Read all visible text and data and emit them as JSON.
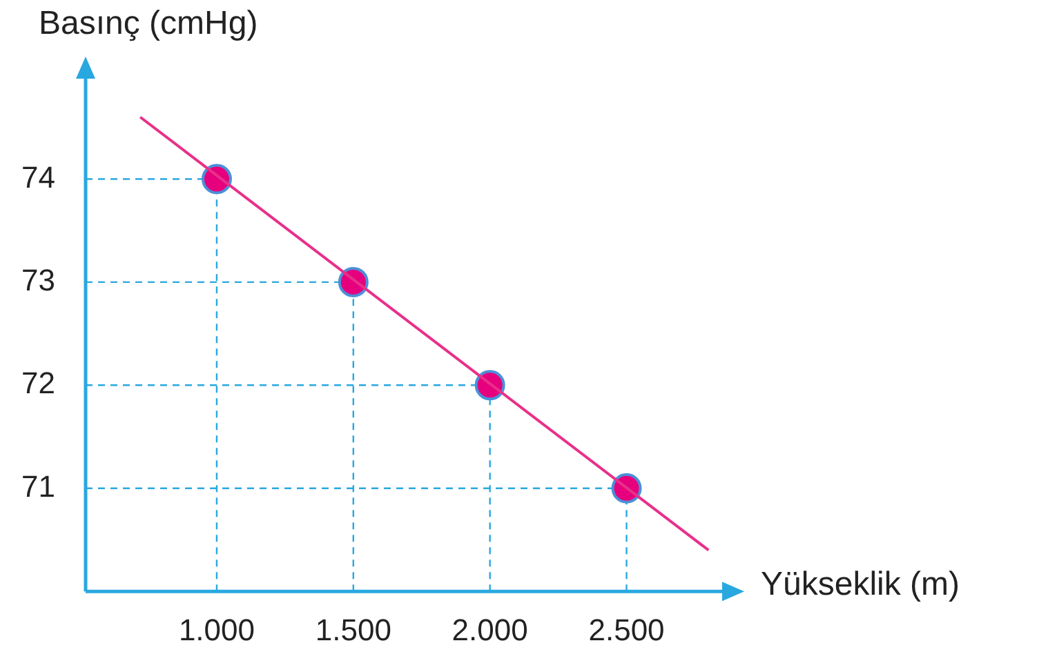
{
  "chart_data": {
    "type": "scatter",
    "xlabel": "Yükseklik (m)",
    "ylabel": "Basınç (cmHg)",
    "xlim": [
      520,
      2860
    ],
    "ylim": [
      70,
      75
    ],
    "xticks": [
      {
        "value": 1000,
        "label": "1.000"
      },
      {
        "value": 1500,
        "label": "1.500"
      },
      {
        "value": 2000,
        "label": "2.000"
      },
      {
        "value": 2500,
        "label": "2.500"
      }
    ],
    "yticks": [
      71,
      72,
      73,
      74
    ],
    "legend": false,
    "ref_lines": [
      {
        "axis": "y",
        "value": 74,
        "color": "#29a8e0",
        "line_style": "dashed"
      },
      {
        "axis": "y",
        "value": 73,
        "color": "#29a8e0",
        "line_style": "dashed"
      },
      {
        "axis": "y",
        "value": 72,
        "color": "#29a8e0",
        "line_style": "dashed"
      },
      {
        "axis": "y",
        "value": 71,
        "color": "#29a8e0",
        "line_style": "dashed"
      },
      {
        "axis": "x",
        "value": 1000,
        "color": "#29a8e0",
        "line_style": "dashed"
      },
      {
        "axis": "x",
        "value": 1500,
        "color": "#29a8e0",
        "line_style": "dashed"
      },
      {
        "axis": "x",
        "value": 2000,
        "color": "#29a8e0",
        "line_style": "dashed"
      },
      {
        "axis": "x",
        "value": 2500,
        "color": "#29a8e0",
        "line_style": "dashed"
      }
    ],
    "series": [
      {
        "type": "line",
        "color": "#e8308a",
        "marker": "none",
        "x": [
          720,
          2800
        ],
        "values": [
          74.6,
          70.4
        ]
      },
      {
        "color": "#e6007e",
        "marker": "circle",
        "x": [
          1000,
          1500,
          2000,
          2500
        ],
        "values": [
          74,
          73,
          72,
          71
        ]
      }
    ]
  }
}
